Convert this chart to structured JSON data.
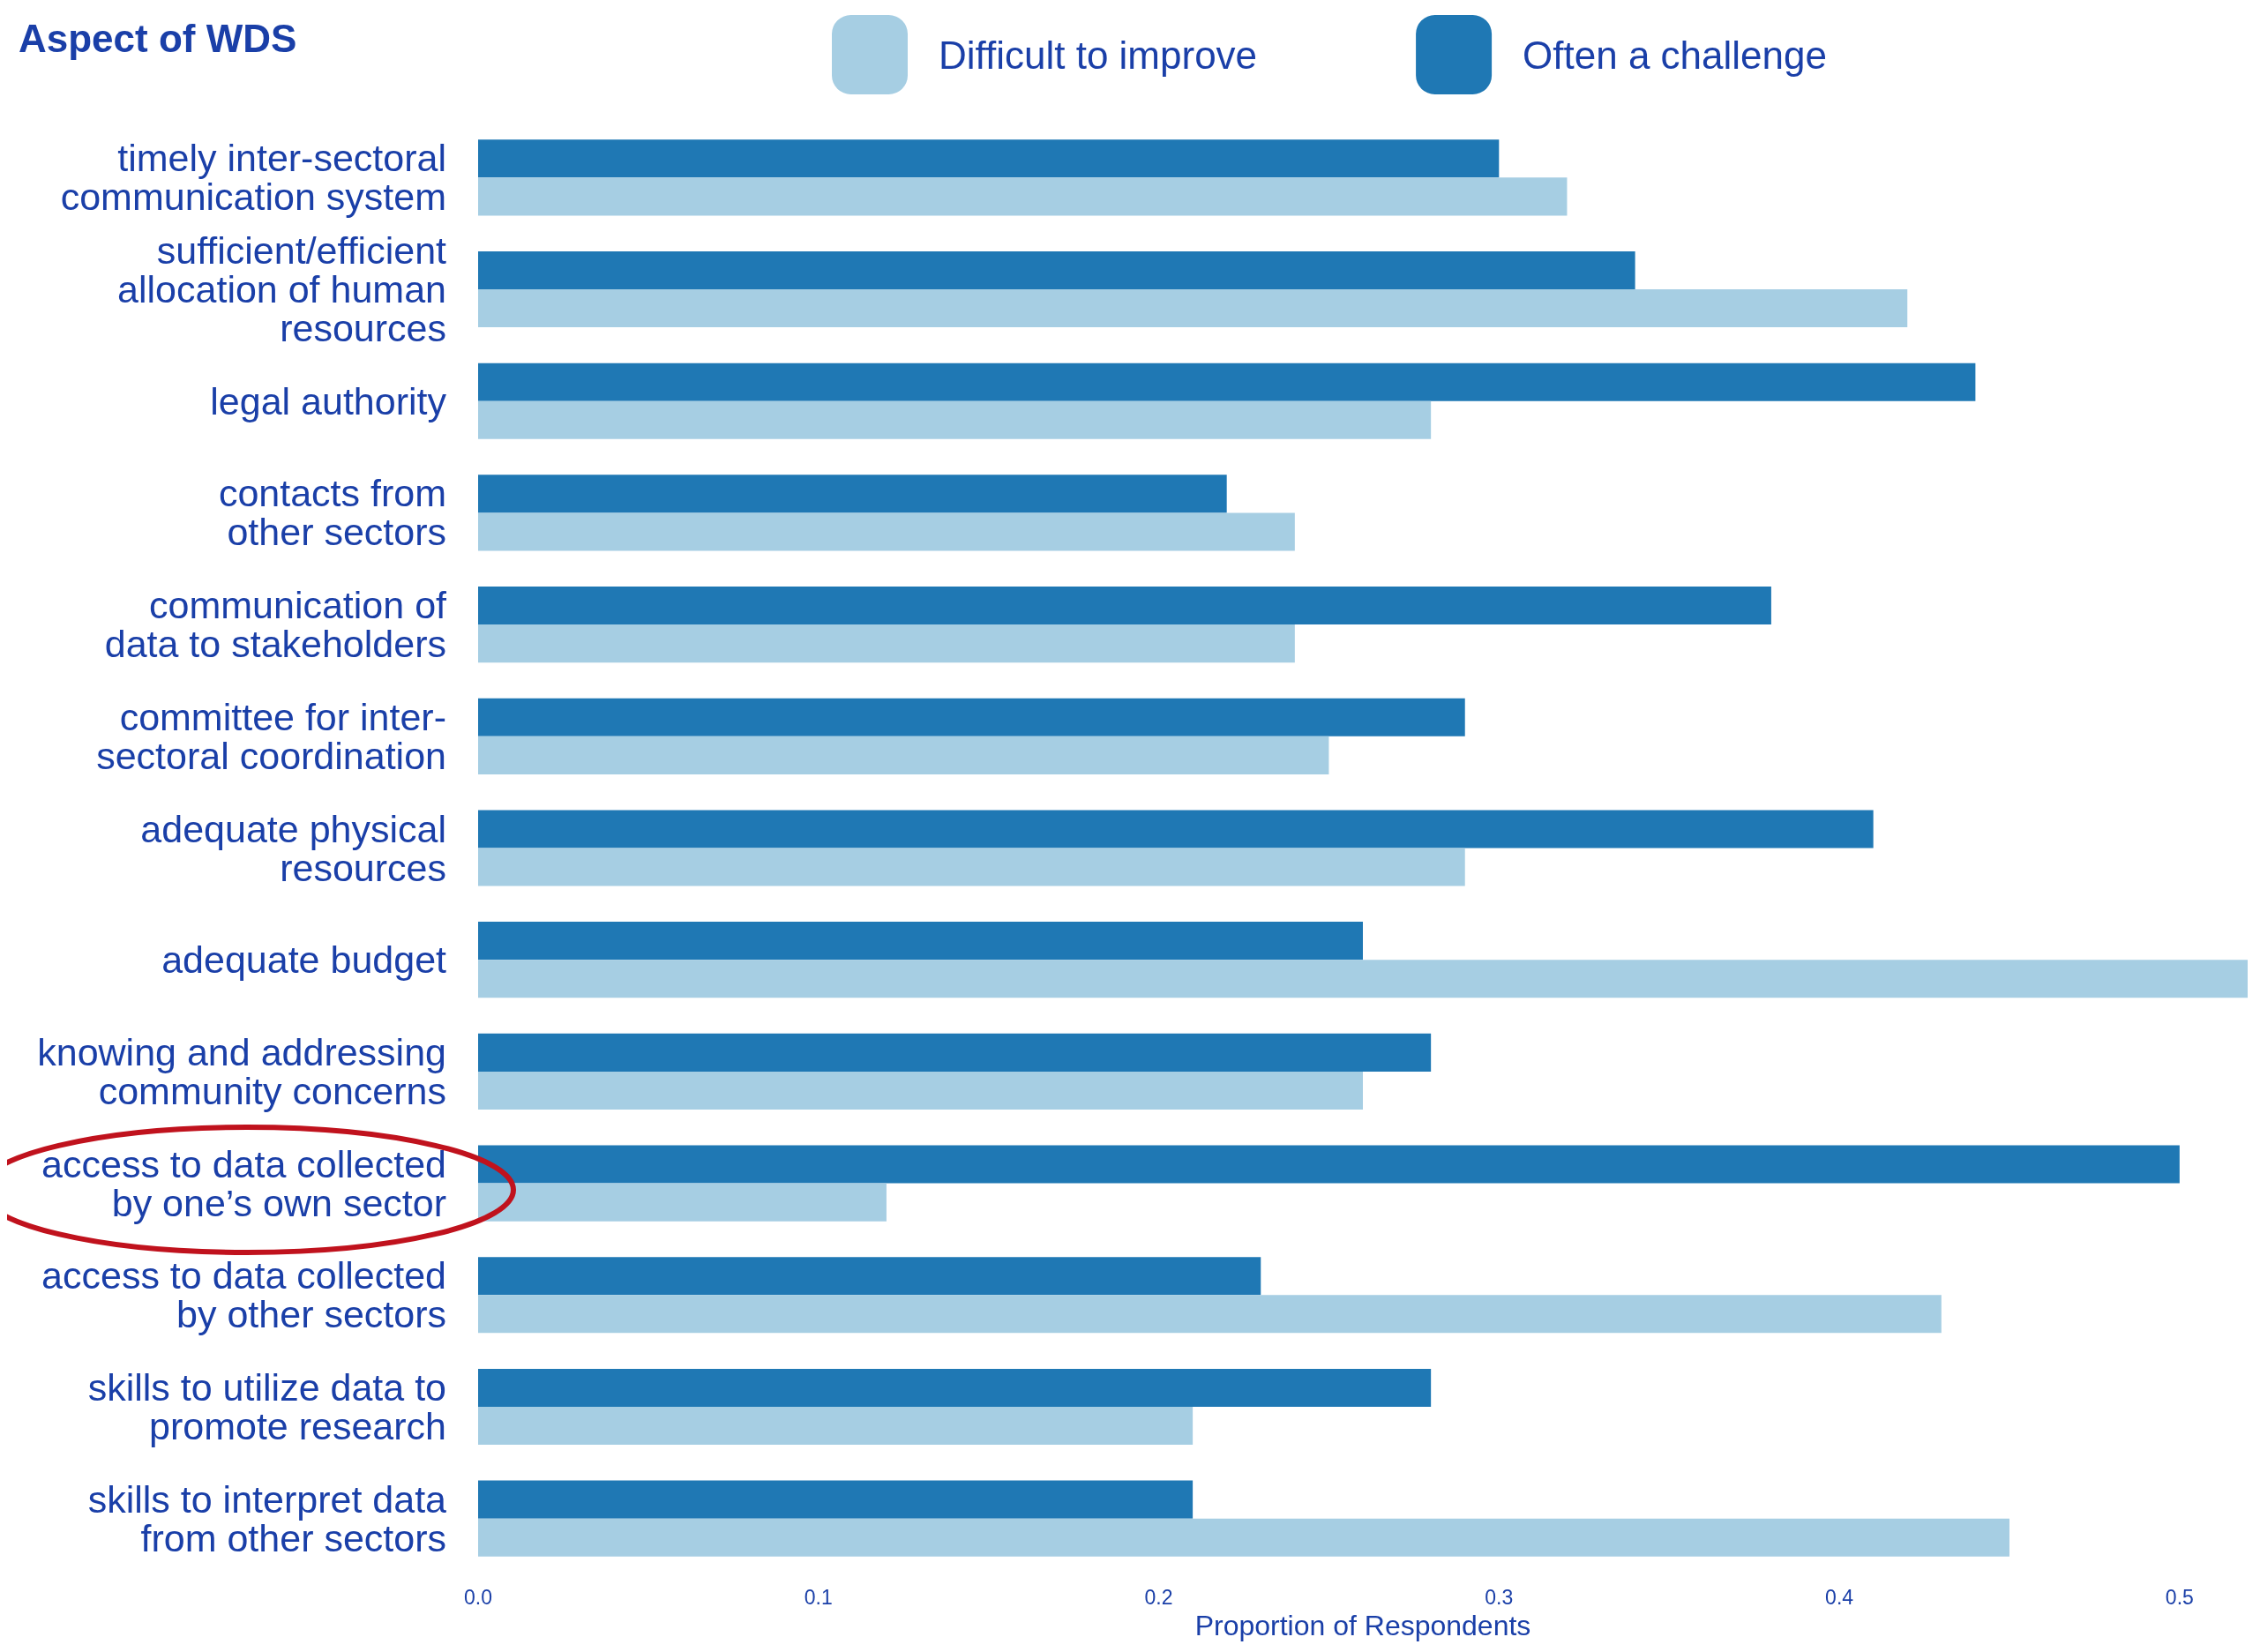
{
  "chart_data": {
    "type": "bar",
    "orientation": "horizontal",
    "legend_title": "Aspect of WDS",
    "xlabel": "Proportion of Respondents",
    "categories": [
      "timely inter-sectoral\ncommunication system",
      "sufficient/efficient\nallocation of human\nresources",
      "legal authority",
      "contacts from\nother sectors",
      "communication of\ndata to stakeholders",
      "committee for inter-\nsectoral coordination",
      "adequate physical\nresources",
      "adequate budget",
      "knowing and addressing\ncommunity concerns",
      "access to data collected\nby one’s own sector",
      "access to data collected\nby other sectors",
      "skills to utilize data to\npromote research",
      "skills to interpret data\nfrom other sectors"
    ],
    "series": [
      {
        "name": "Difficult to improve",
        "color": "#a6cee3",
        "values": [
          0.32,
          0.42,
          0.28,
          0.24,
          0.24,
          0.25,
          0.29,
          0.52,
          0.26,
          0.12,
          0.43,
          0.21,
          0.45
        ]
      },
      {
        "name": "Often a challenge",
        "color": "#1f78b4",
        "values": [
          0.3,
          0.34,
          0.44,
          0.22,
          0.38,
          0.29,
          0.41,
          0.26,
          0.28,
          0.5,
          0.23,
          0.28,
          0.21
        ]
      }
    ],
    "xlim": [
      0,
      0.52
    ],
    "xticks": [
      {
        "value": 0,
        "label": "0.0"
      },
      0.1,
      0.2,
      0.3,
      0.4,
      0.5
    ],
    "legend": "top",
    "grid": false
  }
}
